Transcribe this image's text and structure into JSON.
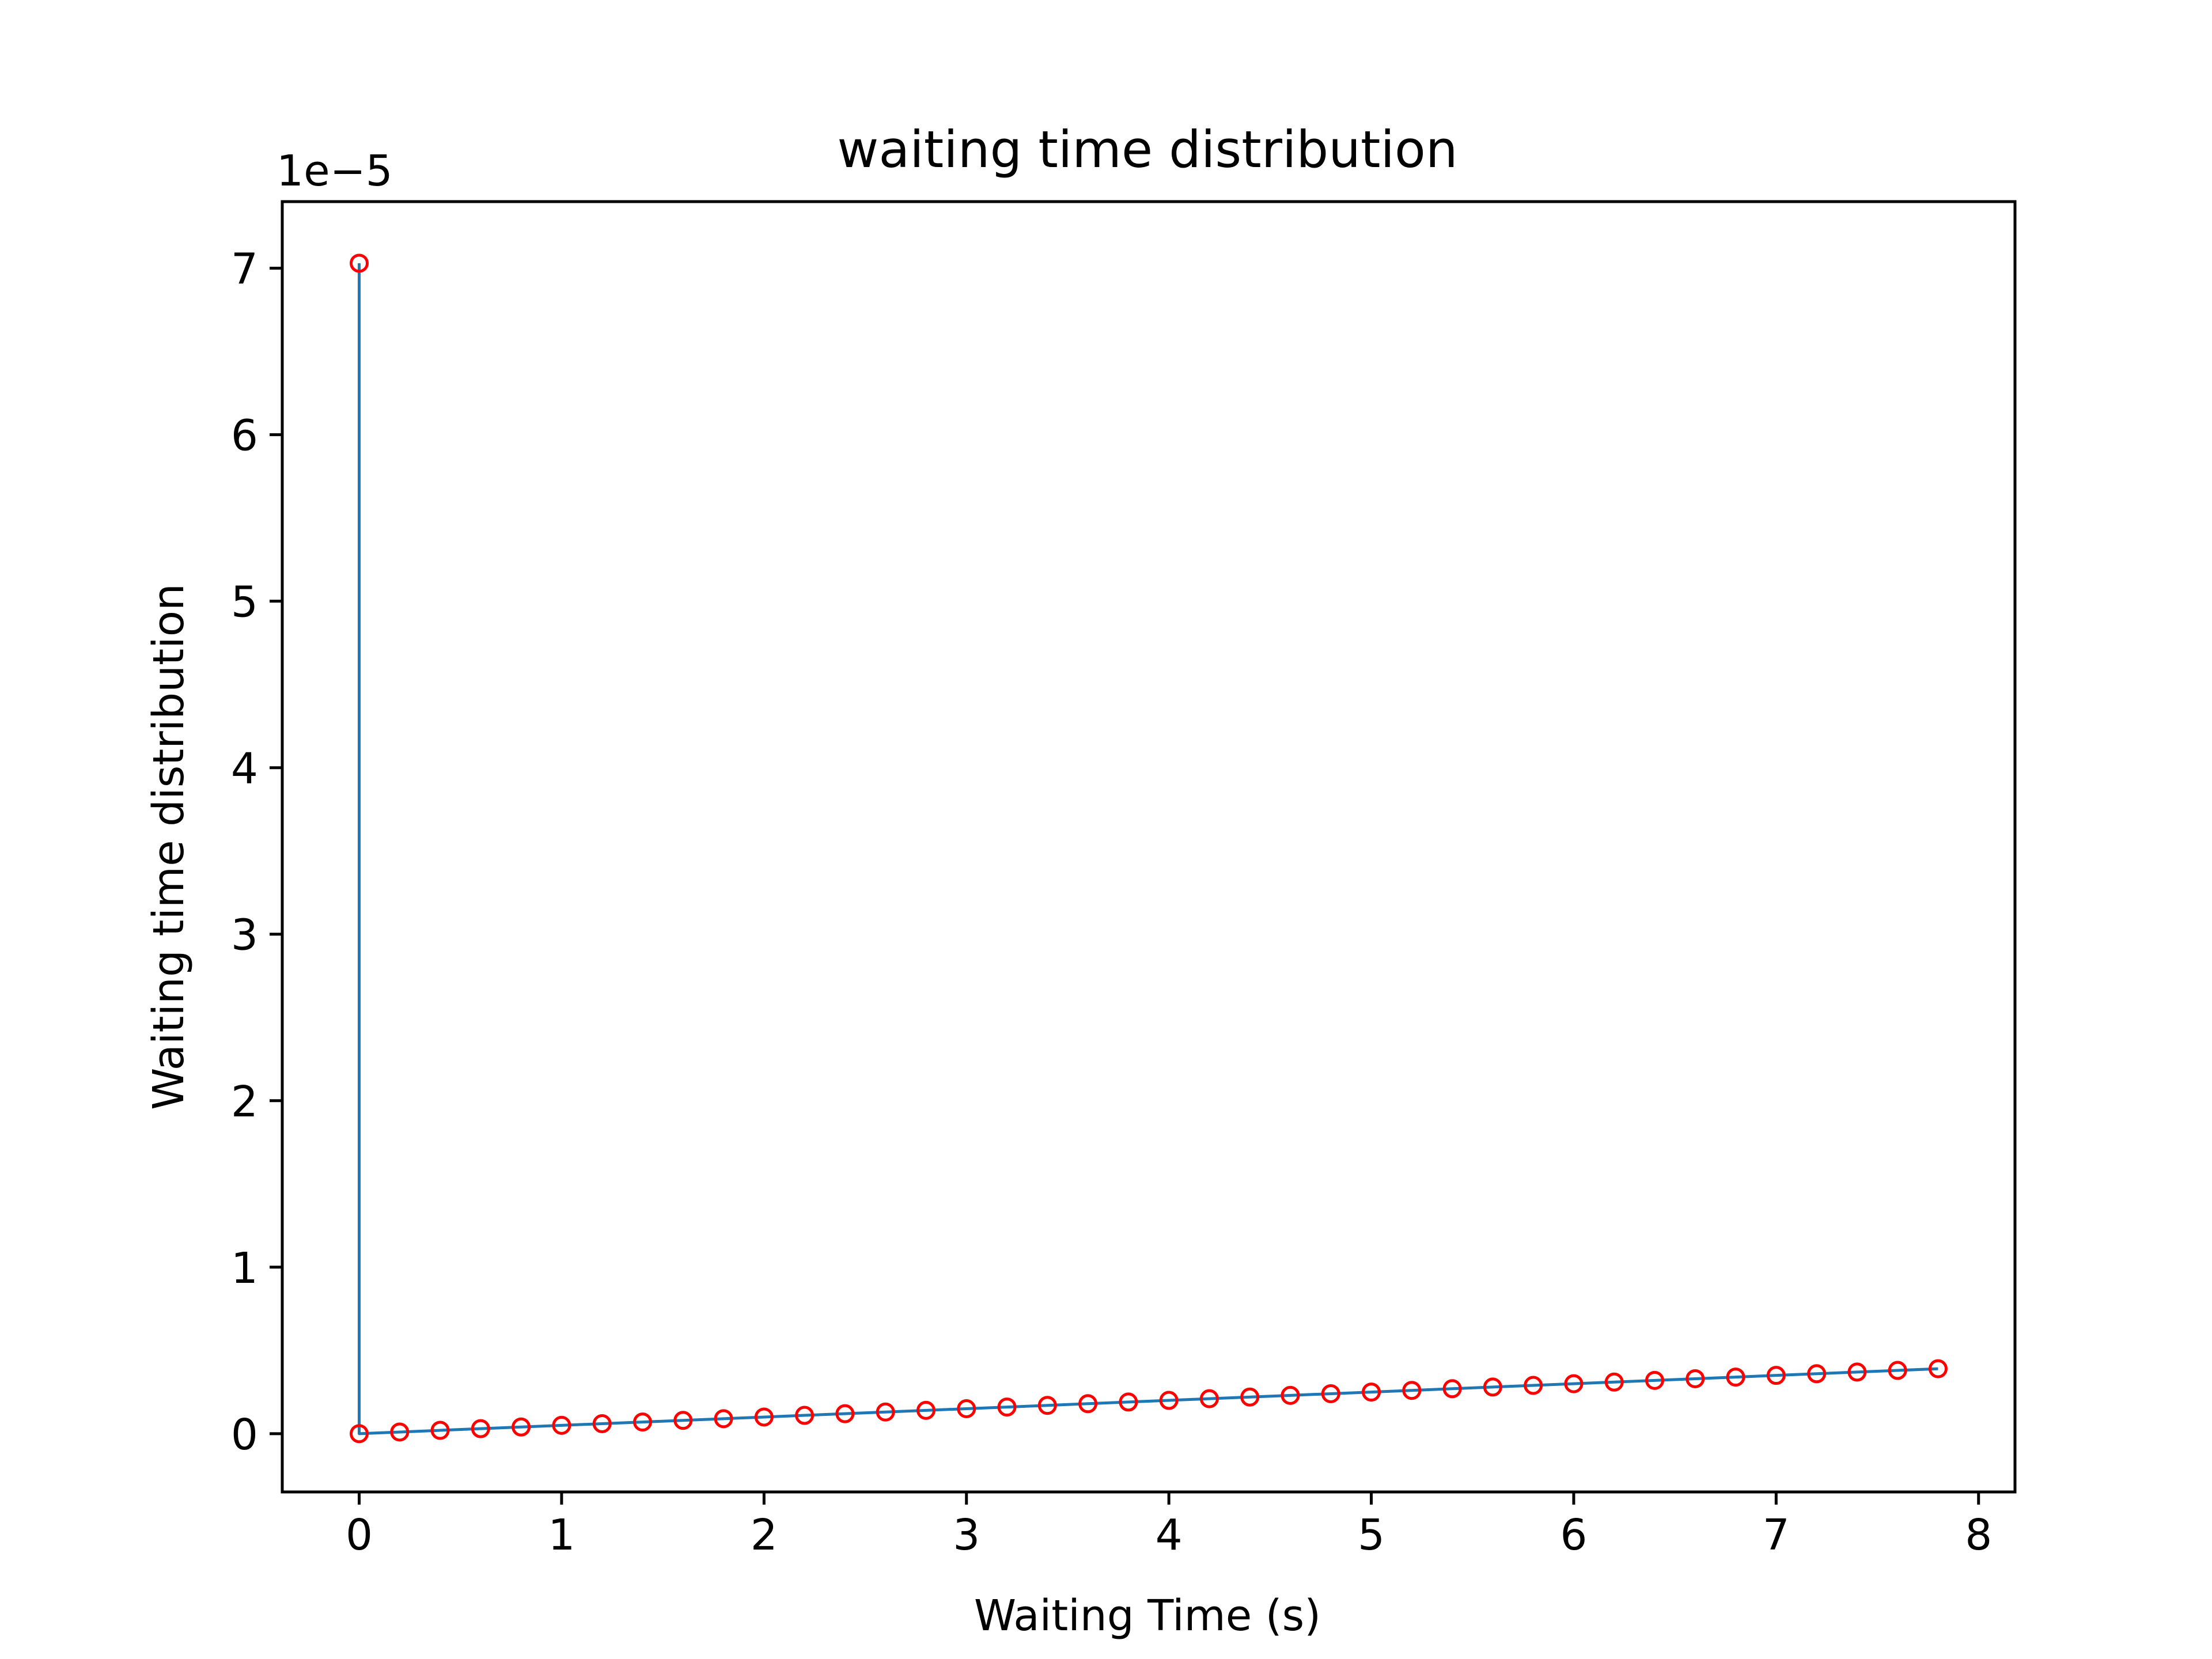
{
  "chart_data": {
    "type": "line",
    "title": "waiting time distribution",
    "xlabel": "Waiting Time (s)",
    "ylabel": "Waiting time distribution",
    "y_offset_label": "1e−5",
    "y_scale_factor": 1e-05,
    "xlim": [
      -0.38,
      8.18
    ],
    "ylim": [
      -0.35,
      7.4
    ],
    "x_ticks": [
      0,
      1,
      2,
      3,
      4,
      5,
      6,
      7,
      8
    ],
    "y_ticks": [
      0,
      1,
      2,
      3,
      4,
      5,
      6,
      7
    ],
    "x_tick_labels": [
      "0",
      "1",
      "2",
      "3",
      "4",
      "5",
      "6",
      "7",
      "8"
    ],
    "y_tick_labels": [
      "0",
      "1",
      "2",
      "3",
      "4",
      "5",
      "6",
      "7"
    ],
    "grid": false,
    "legend": "none",
    "line_color": "#1f77b4",
    "marker_color": "#ff0000",
    "series": [
      {
        "x": [
          0.0,
          0.0,
          0.2,
          0.4,
          0.6,
          0.8,
          1.0,
          1.2,
          1.4,
          1.6,
          1.8,
          2.0,
          2.2,
          2.4,
          2.6,
          2.8,
          3.0,
          3.2,
          3.4,
          3.6,
          3.8,
          4.0,
          4.2,
          4.4,
          4.6,
          4.8,
          5.0,
          5.2,
          5.4,
          5.6,
          5.8,
          6.0,
          6.2,
          6.4,
          6.6,
          6.8,
          7.0,
          7.2,
          7.4,
          7.6,
          7.8
        ],
        "y": [
          7.03,
          0.0,
          0.01,
          0.02,
          0.03,
          0.04,
          0.05,
          0.06,
          0.07,
          0.08,
          0.09,
          0.1,
          0.11,
          0.12,
          0.13,
          0.14,
          0.15,
          0.16,
          0.17,
          0.18,
          0.19,
          0.2,
          0.21,
          0.22,
          0.23,
          0.24,
          0.25,
          0.26,
          0.27,
          0.28,
          0.29,
          0.3,
          0.31,
          0.32,
          0.33,
          0.34,
          0.35,
          0.36,
          0.37,
          0.38,
          0.39
        ]
      }
    ]
  }
}
